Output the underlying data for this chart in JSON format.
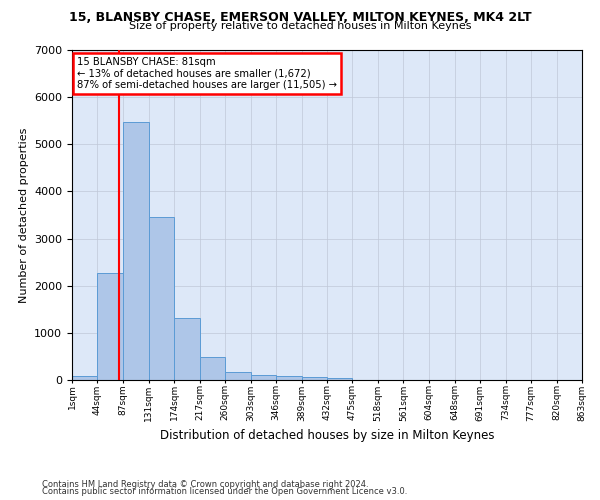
{
  "title1": "15, BLANSBY CHASE, EMERSON VALLEY, MILTON KEYNES, MK4 2LT",
  "title2": "Size of property relative to detached houses in Milton Keynes",
  "xlabel": "Distribution of detached houses by size in Milton Keynes",
  "ylabel": "Number of detached properties",
  "footnote1": "Contains HM Land Registry data © Crown copyright and database right 2024.",
  "footnote2": "Contains public sector information licensed under the Open Government Licence v3.0.",
  "annotation_title": "15 BLANSBY CHASE: 81sqm",
  "annotation_line1": "← 13% of detached houses are smaller (1,672)",
  "annotation_line2": "87% of semi-detached houses are larger (11,505) →",
  "property_line_x": 81,
  "bar_color": "#aec6e8",
  "bar_edge_color": "#5b9bd5",
  "annotation_box_color": "#ffffff",
  "annotation_box_edge": "#ff0000",
  "property_line_color": "#ff0000",
  "background_color": "#dde8f8",
  "ylim": [
    0,
    7000
  ],
  "bin_edges": [
    1,
    44,
    87,
    131,
    174,
    217,
    260,
    303,
    346,
    389,
    432,
    475,
    518,
    561,
    604,
    648,
    691,
    734,
    777,
    820,
    863
  ],
  "bin_labels": [
    "1sqm",
    "44sqm",
    "87sqm",
    "131sqm",
    "174sqm",
    "217sqm",
    "260sqm",
    "303sqm",
    "346sqm",
    "389sqm",
    "432sqm",
    "475sqm",
    "518sqm",
    "561sqm",
    "604sqm",
    "648sqm",
    "691sqm",
    "734sqm",
    "777sqm",
    "820sqm",
    "863sqm"
  ],
  "bar_heights": [
    90,
    2280,
    5480,
    3450,
    1320,
    480,
    170,
    110,
    80,
    55,
    40,
    0,
    0,
    0,
    0,
    0,
    0,
    0,
    0,
    0
  ]
}
